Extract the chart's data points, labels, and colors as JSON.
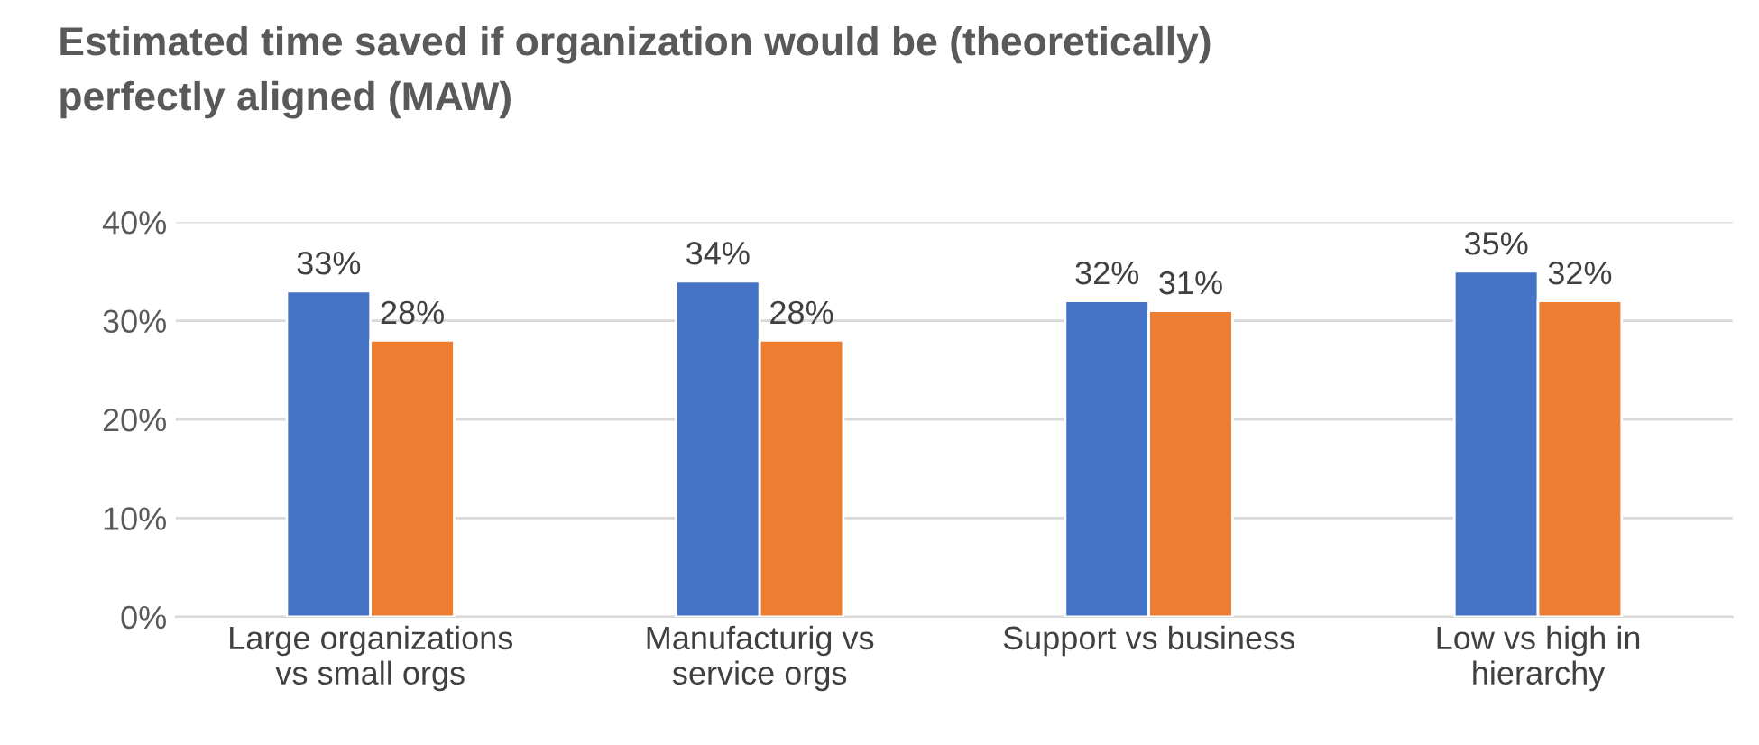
{
  "chart_data": {
    "type": "bar",
    "title": "Estimated time saved if organization would be (theoretically)\nperfectly aligned (MAW)",
    "categories": [
      "Large organizations\nvs small orgs",
      "Manufacturig vs\nservice orgs",
      "Support vs business",
      "Low vs high in\nhierarchy"
    ],
    "series": [
      {
        "color": "#4472c4",
        "values": [
          33,
          34,
          32,
          35
        ],
        "value_labels": [
          "33%",
          "34%",
          "32%",
          "35%"
        ]
      },
      {
        "color": "#ed7d31",
        "values": [
          28,
          28,
          31,
          32
        ],
        "value_labels": [
          "28%",
          "28%",
          "31%",
          "32%"
        ]
      }
    ],
    "ylim": [
      0,
      40
    ],
    "yticks": [
      {
        "value": 0,
        "label": "0%"
      },
      {
        "value": 10,
        "label": "10%"
      },
      {
        "value": 20,
        "label": "20%"
      },
      {
        "value": 30,
        "label": "30%"
      },
      {
        "value": 40,
        "label": "40%"
      }
    ],
    "grid": "y",
    "legend": false
  }
}
